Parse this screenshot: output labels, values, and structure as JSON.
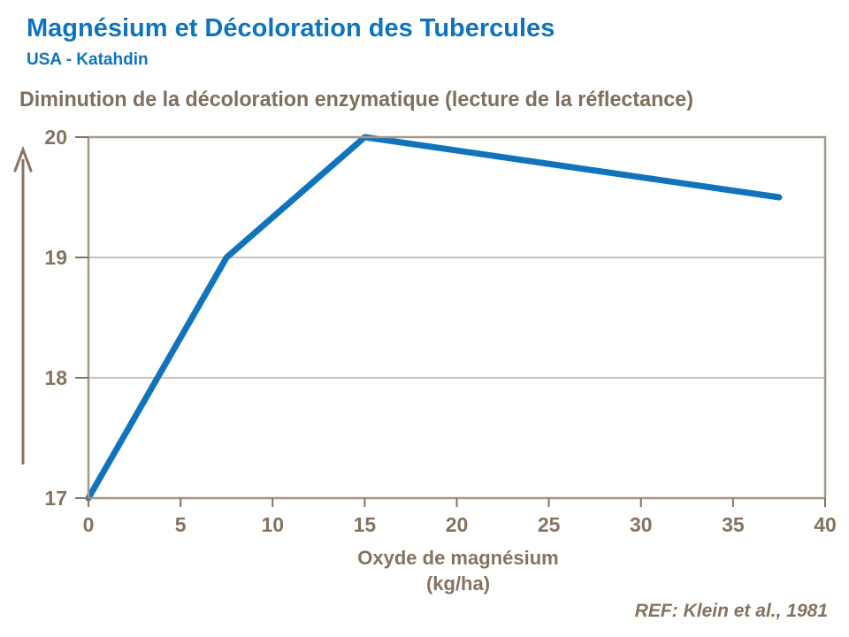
{
  "header": {
    "title": "Magnésium et Décoloration des Tubercules",
    "subtitle": "USA - Katahdin"
  },
  "reference": "REF: Klein et al., 1981",
  "colors": {
    "title_blue": "#0e75bd",
    "line_blue": "#1173bc",
    "text_brown": "#84735f",
    "heading_brown": "#7e6f5c",
    "grid_brown": "#b7ab9d",
    "border_brown": "#a3978a"
  },
  "chart_data": {
    "type": "line",
    "title": "Diminution de la décoloration enzymatique (lecture de la réflectance)",
    "xlabel_line1": "Oxyde de magnésium",
    "xlabel_line2": "(kg/ha)",
    "ylabel": "",
    "x": [
      0,
      7.5,
      15,
      37.5
    ],
    "y": [
      17,
      19,
      20,
      19.5
    ],
    "xlim": [
      0,
      40
    ],
    "ylim": [
      17,
      20
    ],
    "x_ticks": [
      0,
      5,
      10,
      15,
      20,
      25,
      30,
      35,
      40
    ],
    "y_ticks": [
      17,
      18,
      19,
      20
    ],
    "grid": "horizontal",
    "legend": "none",
    "series": [
      {
        "name": "Lecture de la réflectance",
        "x": [
          0,
          7.5,
          15,
          37.5
        ],
        "y": [
          17,
          19,
          20,
          19.5
        ]
      }
    ]
  }
}
